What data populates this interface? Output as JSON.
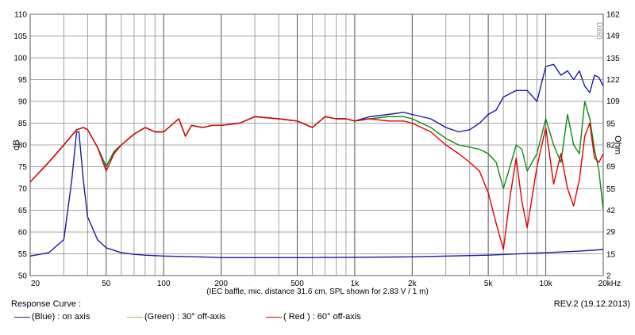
{
  "footer": {
    "title": "Response Curve :",
    "revision": "REV.2 (19.12.2013)",
    "legend": [
      {
        "label": "(Blue)  : on axis",
        "color": "#1a1aa0"
      },
      {
        "label": "(Green) : 30° off-axis",
        "color": "#0f8a0f"
      },
      {
        "label": "( Red ) : 60° off-axis",
        "color": "#e00000"
      }
    ]
  },
  "watermark": "D850",
  "chart_data": {
    "type": "line",
    "xscale": "log",
    "xlim": [
      20,
      20000
    ],
    "ylim": [
      50,
      110
    ],
    "y2lim": [
      2,
      162
    ],
    "xlabel": "(IEC baffle, mic. distance 31.6 cm, SPL shown for 2.83 V / 1 m)",
    "ylabel": "dB",
    "y2label": "Ohm",
    "xticks": [
      20,
      50,
      100,
      200,
      500,
      1000,
      2000,
      5000,
      10000,
      20000
    ],
    "xtick_labels": [
      "20",
      "50",
      "100",
      "200",
      "500",
      "1k",
      "2k",
      "5k",
      "10k",
      "20kHz"
    ],
    "yticks": [
      50,
      55,
      60,
      65,
      70,
      75,
      80,
      85,
      90,
      95,
      100,
      105,
      110
    ],
    "y2ticks": [
      2,
      15,
      29,
      42,
      55,
      69,
      82,
      95,
      109,
      122,
      135,
      149,
      162
    ],
    "grid": true,
    "series": [
      {
        "name": "(Blue)  : on axis",
        "color": "#1a1aa0",
        "x": [
          20,
          25,
          30,
          35,
          38,
          40,
          45,
          50,
          55,
          60,
          70,
          80,
          90,
          100,
          120,
          130,
          140,
          160,
          180,
          200,
          250,
          300,
          400,
          500,
          600,
          700,
          800,
          900,
          1000,
          1200,
          1500,
          1800,
          2000,
          2500,
          3000,
          3500,
          4000,
          4500,
          5000,
          5500,
          6000,
          7000,
          8000,
          9000,
          10000,
          11000,
          12000,
          13000,
          14000,
          15000,
          16000,
          17000,
          18000,
          19000,
          20000
        ],
        "y": [
          71.5,
          76,
          80,
          83.5,
          84,
          83.5,
          79.5,
          75,
          78.5,
          80,
          82.5,
          84,
          83,
          83,
          86,
          82,
          84.5,
          84,
          84.5,
          84.5,
          85,
          86.5,
          86,
          85.5,
          84,
          86.5,
          86,
          86,
          85.5,
          86.5,
          87,
          87.5,
          87,
          86,
          84,
          83,
          83.5,
          85,
          87,
          88,
          91,
          92.5,
          92.5,
          90,
          98,
          98.5,
          96,
          97,
          95,
          97,
          93.5,
          92,
          96,
          95.5,
          93.5
        ]
      },
      {
        "name": "(Green) : 30° off-axis",
        "color": "#0f8a0f",
        "x": [
          20,
          25,
          30,
          35,
          38,
          40,
          45,
          50,
          55,
          60,
          70,
          80,
          90,
          100,
          120,
          130,
          140,
          160,
          180,
          200,
          250,
          300,
          400,
          500,
          600,
          700,
          800,
          900,
          1000,
          1200,
          1500,
          1800,
          2000,
          2500,
          3000,
          3500,
          4000,
          4500,
          5000,
          5500,
          6000,
          6500,
          7000,
          7500,
          8000,
          9000,
          10000,
          11000,
          12000,
          13000,
          14000,
          15000,
          16000,
          17000,
          18000,
          19000,
          20000
        ],
        "y": [
          71.5,
          76,
          80,
          83.5,
          84,
          83.5,
          79.5,
          75,
          78.5,
          80,
          82.5,
          84,
          83,
          83,
          86,
          82,
          84.5,
          84,
          84.5,
          84.5,
          85,
          86.5,
          86,
          85.5,
          84,
          86.5,
          86,
          86,
          85.5,
          86,
          86.5,
          86.5,
          86,
          84,
          81.5,
          80,
          79.5,
          79,
          78,
          76,
          70,
          75,
          80,
          79,
          74,
          78,
          86,
          80,
          76,
          87,
          80,
          78,
          90,
          86,
          79,
          74,
          65
        ]
      },
      {
        "name": "( Red ) : 60° off-axis",
        "color": "#e00000",
        "x": [
          20,
          25,
          30,
          35,
          38,
          40,
          45,
          50,
          55,
          60,
          70,
          80,
          90,
          100,
          120,
          130,
          140,
          160,
          180,
          200,
          250,
          300,
          400,
          500,
          600,
          700,
          800,
          900,
          1000,
          1200,
          1500,
          1800,
          2000,
          2500,
          3000,
          3500,
          4000,
          4500,
          5000,
          5500,
          6000,
          6500,
          7000,
          7500,
          8000,
          9000,
          10000,
          11000,
          12000,
          13000,
          14000,
          15000,
          16000,
          17000,
          18000,
          19000,
          20000
        ],
        "y": [
          71.5,
          76,
          80,
          83.5,
          84,
          83.5,
          79.5,
          74,
          78,
          80,
          82.5,
          84,
          83,
          83,
          86,
          82,
          84.5,
          84,
          84.5,
          84.5,
          85,
          86.5,
          86,
          85.5,
          84,
          86.5,
          86,
          86,
          85.5,
          86,
          85.5,
          85.5,
          85,
          83,
          80,
          78,
          76,
          74,
          69,
          62,
          56,
          68,
          77,
          67,
          61,
          75,
          84,
          71,
          78,
          70,
          66,
          72,
          82,
          85,
          77,
          76,
          78
        ]
      },
      {
        "name": "impedance",
        "axis": "right",
        "color": "#1a1aa0",
        "x": [
          20,
          25,
          30,
          33,
          35,
          36,
          38,
          40,
          45,
          50,
          60,
          70,
          80,
          100,
          150,
          200,
          300,
          500,
          1000,
          2000,
          5000,
          10000,
          15000,
          20000
        ],
        "y": [
          14,
          16,
          24,
          60,
          90,
          90,
          60,
          38,
          24,
          19,
          16,
          15,
          14.5,
          14,
          13.5,
          13,
          13,
          13,
          13.2,
          13.5,
          14.5,
          16,
          17,
          18
        ]
      }
    ]
  }
}
